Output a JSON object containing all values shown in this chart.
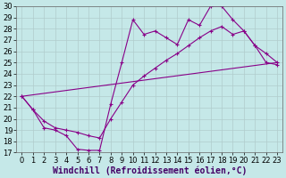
{
  "title": "",
  "xlabel": "Windchill (Refroidissement éolien,°C)",
  "bg_color": "#c5e8e8",
  "line_color": "#880088",
  "xlim": [
    -0.5,
    23.5
  ],
  "ylim": [
    17,
    30
  ],
  "yticks": [
    17,
    18,
    19,
    20,
    21,
    22,
    23,
    24,
    25,
    26,
    27,
    28,
    29,
    30
  ],
  "xticks": [
    0,
    1,
    2,
    3,
    4,
    5,
    6,
    7,
    8,
    9,
    10,
    11,
    12,
    13,
    14,
    15,
    16,
    17,
    18,
    19,
    20,
    21,
    22,
    23
  ],
  "line1_x": [
    0,
    1,
    2,
    3,
    4,
    5,
    6,
    7,
    8,
    9,
    10,
    11,
    12,
    13,
    14,
    15,
    16,
    17,
    18,
    19,
    20,
    21,
    22,
    23
  ],
  "line1_y": [
    22.0,
    20.8,
    19.2,
    19.0,
    18.5,
    17.3,
    17.2,
    17.2,
    21.3,
    25.0,
    28.8,
    27.5,
    27.8,
    27.2,
    26.6,
    28.8,
    28.3,
    30.0,
    30.0,
    28.8,
    27.8,
    26.5,
    25.0,
    24.8
  ],
  "line2_x": [
    0,
    1,
    2,
    3,
    4,
    5,
    6,
    7,
    8,
    9,
    10,
    11,
    12,
    13,
    14,
    15,
    16,
    17,
    18,
    19,
    20,
    21,
    22,
    23
  ],
  "line2_y": [
    22.0,
    20.8,
    19.8,
    19.2,
    19.0,
    18.8,
    18.5,
    18.3,
    20.0,
    21.5,
    23.0,
    23.8,
    24.5,
    25.2,
    25.8,
    26.5,
    27.2,
    27.8,
    28.2,
    27.5,
    27.8,
    26.5,
    25.8,
    25.0
  ],
  "line3_x": [
    0,
    23
  ],
  "line3_y": [
    22.0,
    25.0
  ],
  "grid_color": "#b0cccc",
  "xlabel_fontsize": 7,
  "tick_fontsize": 6.0
}
